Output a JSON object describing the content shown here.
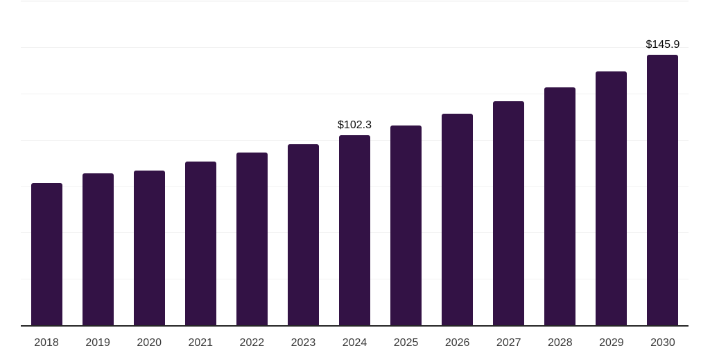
{
  "chart_data": {
    "type": "bar",
    "title": "",
    "xlabel": "",
    "ylabel": "",
    "categories": [
      "2018",
      "2019",
      "2020",
      "2021",
      "2022",
      "2023",
      "2024",
      "2025",
      "2026",
      "2027",
      "2028",
      "2029",
      "2030"
    ],
    "values": [
      76.5,
      82.0,
      83.2,
      88.2,
      93.0,
      97.5,
      102.3,
      107.8,
      113.9,
      120.6,
      128.1,
      136.7,
      145.9
    ],
    "data_labels": [
      "",
      "",
      "",
      "",
      "",
      "",
      "$102.3",
      "",
      "",
      "",
      "",
      "",
      "$145.9"
    ],
    "ylim": [
      0,
      175
    ],
    "gridline_step": 25,
    "grid": "horizontal-only",
    "legend": "none",
    "y_axis_tick_labels": "none",
    "colors": {
      "bar": "#331245",
      "axis_line": "#262626",
      "gridline": "#f2f2f2",
      "top_gridline": "#e7e7e7",
      "tick_label": "#3a3a3a",
      "data_label": "#0a0a0a",
      "background": "#ffffff"
    }
  }
}
